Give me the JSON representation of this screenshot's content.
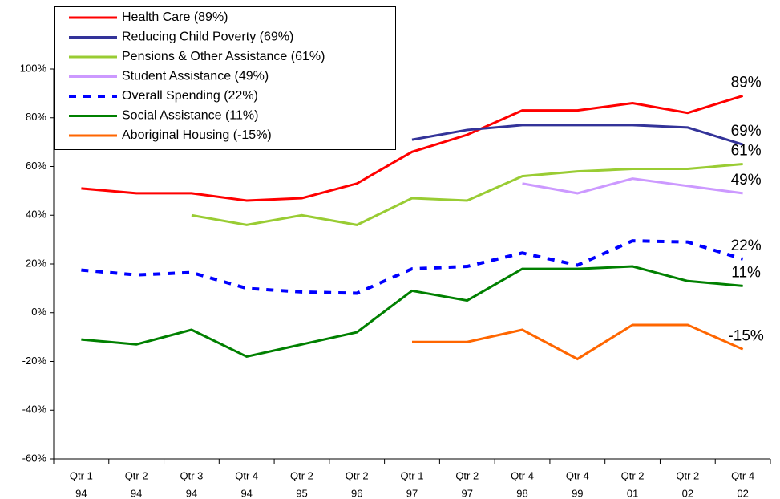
{
  "chart_data": {
    "type": "line",
    "categories": [
      [
        "Qtr 1",
        "94"
      ],
      [
        "Qtr 2",
        "94"
      ],
      [
        "Qtr 3",
        "94"
      ],
      [
        "Qtr 4",
        "94"
      ],
      [
        "Qtr 2",
        "95"
      ],
      [
        "Qtr 2",
        "96"
      ],
      [
        "Qtr 1",
        "97"
      ],
      [
        "Qtr 2",
        "97"
      ],
      [
        "Qtr 4",
        "98"
      ],
      [
        "Qtr 4",
        "99"
      ],
      [
        "Qtr 2",
        "01"
      ],
      [
        "Qtr 2",
        "02"
      ],
      [
        "Qtr 4",
        "02"
      ]
    ],
    "ylim": [
      -60,
      100
    ],
    "yticks": [
      {
        "value": -60,
        "label": "-60%"
      },
      {
        "value": -40,
        "label": "-40%"
      },
      {
        "value": -20,
        "label": "-20%"
      },
      {
        "value": 0,
        "label": "0%"
      },
      {
        "value": 20,
        "label": "20%"
      },
      {
        "value": 40,
        "label": "40%"
      },
      {
        "value": 60,
        "label": "60%"
      },
      {
        "value": 80,
        "label": "80%"
      },
      {
        "value": 100,
        "label": "100%"
      }
    ],
    "series": [
      {
        "name": "Health Care (89%)",
        "color": "#ff0000",
        "end_label": "89%",
        "values": [
          51,
          49,
          49,
          46,
          47,
          53,
          66,
          73,
          83,
          83,
          86,
          82,
          89
        ]
      },
      {
        "name": "Reducing Child Poverty (69%)",
        "color": "#333399",
        "end_label": "69%",
        "values": [
          null,
          null,
          null,
          null,
          null,
          null,
          71,
          75,
          77,
          77,
          77,
          76,
          69
        ]
      },
      {
        "name": "Pensions & Other Assistance (61%)",
        "color": "#99cc33",
        "end_label": "61%",
        "values": [
          null,
          null,
          40,
          36,
          40,
          36,
          47,
          46,
          56,
          58,
          59,
          59,
          61
        ]
      },
      {
        "name": "Student Assistance (49%)",
        "color": "#cc99ff",
        "end_label": "49%",
        "values": [
          null,
          null,
          null,
          null,
          null,
          null,
          null,
          null,
          53,
          49,
          55,
          52,
          49
        ]
      },
      {
        "name": "Overall Spending (22%)",
        "color": "#0000ff",
        "dashed": true,
        "end_label": "22%",
        "values": [
          17.5,
          15.5,
          16.5,
          10,
          8.5,
          8,
          18,
          19,
          24.5,
          19.5,
          29.5,
          29,
          22
        ]
      },
      {
        "name": "Social Assistance (11%)",
        "color": "#008000",
        "end_label": "11%",
        "values": [
          -11,
          -13,
          -7,
          -18,
          -13,
          -8,
          9,
          5,
          18,
          18,
          19,
          13,
          11
        ]
      },
      {
        "name": "Aboriginal Housing (-15%)",
        "color": "#ff6600",
        "end_label": "-15%",
        "values": [
          null,
          null,
          null,
          null,
          null,
          null,
          -12,
          -12,
          -7,
          -19,
          -5,
          -5,
          -15
        ]
      }
    ]
  }
}
